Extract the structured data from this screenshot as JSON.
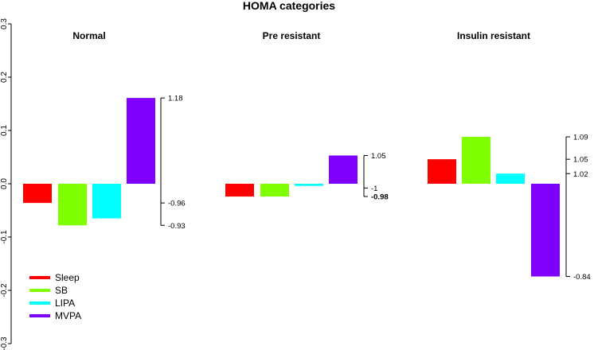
{
  "chart_data": {
    "type": "bar",
    "title": "HOMA categories",
    "xlabel": "",
    "ylabel": "",
    "ylim": [
      -0.3,
      0.3
    ],
    "yticks": [
      {
        "value": 0.3,
        "label": "0.3"
      },
      {
        "value": 0.2,
        "label": "0.2"
      },
      {
        "value": 0.1,
        "label": "0.1"
      },
      {
        "value": 0.0,
        "label": "0.0"
      },
      {
        "value": -0.1,
        "label": "-0.1"
      },
      {
        "value": -0.2,
        "label": "-0.2"
      },
      {
        "value": -0.3,
        "label": "-0.3"
      }
    ],
    "categories": [
      "Sleep",
      "SB",
      "LIPA",
      "MVPA"
    ],
    "colors": [
      "#ff0000",
      "#80ff00",
      "#00ffff",
      "#8000ff"
    ],
    "legend_position": "bottom-left",
    "grid": false,
    "panels": [
      {
        "name": "Normal",
        "values": [
          -0.036,
          -0.078,
          -0.065,
          0.161
        ],
        "scale_labels": [
          {
            "value": 0.161,
            "label": "1.18",
            "bold": false
          },
          {
            "value": -0.036,
            "label": "-0.96",
            "bold": false
          },
          {
            "value": -0.078,
            "label": "-0.93",
            "bold": false
          }
        ]
      },
      {
        "name": "Pre resistant",
        "values": [
          -0.024,
          -0.024,
          -0.004,
          0.053
        ],
        "scale_labels": [
          {
            "value": 0.053,
            "label": "1.05",
            "bold": false
          },
          {
            "value": -0.008,
            "label": "-1",
            "bold": false
          },
          {
            "value": -0.024,
            "label": "-0.98",
            "bold": true
          }
        ]
      },
      {
        "name": "Insulin resistant",
        "values": [
          0.046,
          0.088,
          0.019,
          -0.174
        ],
        "scale_labels": [
          {
            "value": 0.088,
            "label": "1.09",
            "bold": false
          },
          {
            "value": 0.046,
            "label": "1.05",
            "bold": false
          },
          {
            "value": 0.019,
            "label": "1.02",
            "bold": false
          },
          {
            "value": -0.174,
            "label": "-0.84",
            "bold": false
          }
        ]
      }
    ]
  }
}
